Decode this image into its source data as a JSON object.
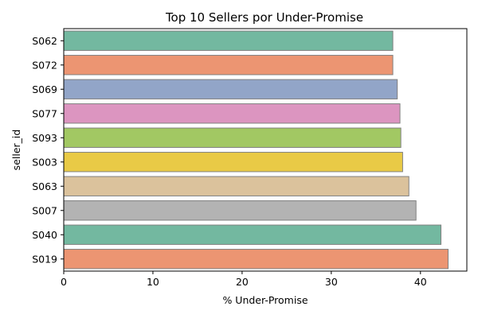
{
  "chart_data": {
    "type": "bar",
    "orientation": "horizontal",
    "title": "Top 10 Sellers por Under-Promise",
    "xlabel": "% Under-Promise",
    "ylabel": "seller_id",
    "categories": [
      "S062",
      "S072",
      "S069",
      "S077",
      "S093",
      "S003",
      "S063",
      "S007",
      "S040",
      "S019"
    ],
    "values": [
      36.9,
      36.9,
      37.4,
      37.7,
      37.8,
      38.0,
      38.7,
      39.5,
      42.3,
      43.1
    ],
    "colors": [
      "#73b8a0",
      "#ec9572",
      "#92a5c8",
      "#dc95c0",
      "#a2c863",
      "#e9ca46",
      "#dbc29c",
      "#b3b3b3",
      "#73b8a0",
      "#ec9572"
    ],
    "bar_edge_color": "#808080",
    "xlim": [
      0,
      45.2
    ],
    "xticks": [
      0,
      10,
      20,
      30,
      40
    ],
    "grid": false,
    "legend": "none"
  }
}
